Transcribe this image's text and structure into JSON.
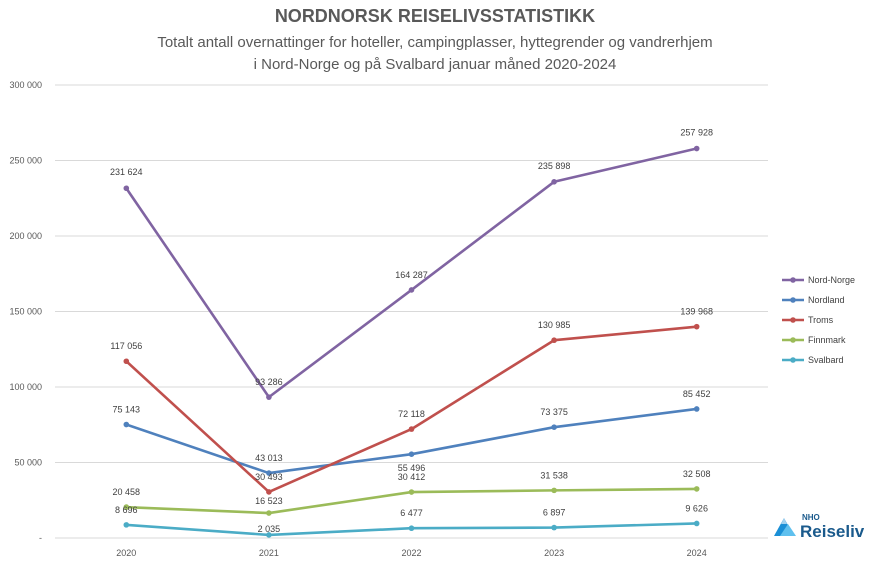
{
  "chart_data": {
    "type": "line",
    "title": "NORDNORSK REISELIVSSTATISTIKK",
    "subtitle_line1": "Totalt antall overnattinger for hoteller, campingplasser, hyttegrender og vandrerhjem",
    "subtitle_line2": "i Nord-Norge og på Svalbard januar måned 2020-2024",
    "categories": [
      "2020",
      "2021",
      "2022",
      "2023",
      "2024"
    ],
    "ylim": [
      0,
      300000
    ],
    "yticks": [
      {
        "value": 0,
        "label": "-"
      },
      {
        "value": 50000,
        "label": "50 000"
      },
      {
        "value": 100000,
        "label": "100 000"
      },
      {
        "value": 150000,
        "label": "150 000"
      },
      {
        "value": 200000,
        "label": "200 000"
      },
      {
        "value": 250000,
        "label": "250 000"
      },
      {
        "value": 300000,
        "label": "300 000"
      }
    ],
    "grid": true,
    "legend_position": "right",
    "series": [
      {
        "name": "Nord-Norge",
        "color": "#8064a2",
        "values": [
          231624,
          93286,
          164287,
          235898,
          257928
        ],
        "labels": [
          "231 624",
          "93 286",
          "164 287",
          "235 898",
          "257 928"
        ]
      },
      {
        "name": "Nordland",
        "color": "#4f81bd",
        "values": [
          75143,
          43013,
          55496,
          73375,
          85452
        ],
        "labels": [
          "75 143",
          "43 013",
          "55 496",
          "73 375",
          "85 452"
        ]
      },
      {
        "name": "Troms",
        "color": "#c0504d",
        "values": [
          117056,
          30493,
          72118,
          130985,
          139968
        ],
        "labels": [
          "117 056",
          "30 493",
          "72 118",
          "130 985",
          "139 968"
        ]
      },
      {
        "name": "Finnmark",
        "color": "#9bbb59",
        "values": [
          20458,
          16523,
          30412,
          31538,
          32508
        ],
        "labels": [
          "20 458",
          "16 523",
          "30 412",
          "31 538",
          "32 508"
        ]
      },
      {
        "name": "Svalbard",
        "color": "#4bacc6",
        "values": [
          8696,
          2035,
          6477,
          6897,
          9626
        ],
        "labels": [
          "8 696",
          "2 035",
          "6 477",
          "6 897",
          "9 626"
        ]
      }
    ]
  },
  "logo": {
    "small": "NHO",
    "big": "Reiseliv",
    "color": "#1a8fd6"
  }
}
